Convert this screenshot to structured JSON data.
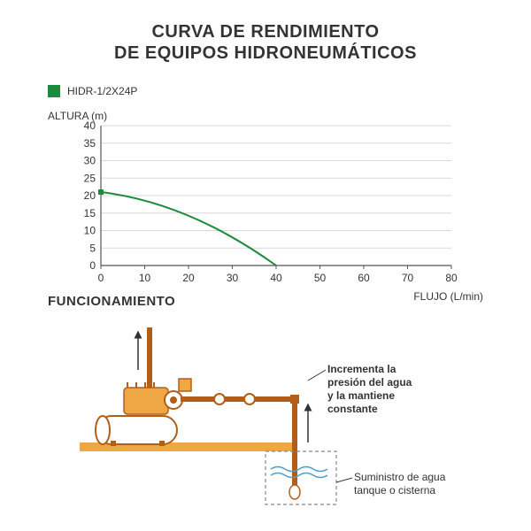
{
  "title_line1": "CURVA DE RENDIMIENTO",
  "title_line2": "DE EQUIPOS HIDRONEUMÁTICOS",
  "title_fontsize": 20,
  "legend": {
    "label": "HIDR-1/2X24P",
    "swatch_color": "#1a8a3c"
  },
  "chart": {
    "type": "line",
    "y_title": "ALTURA (m)",
    "x_title": "FLUJO (L/min)",
    "xlim": [
      0,
      80
    ],
    "ylim": [
      0,
      40
    ],
    "xtick_step": 10,
    "ytick_step": 5,
    "axis_color": "#555555",
    "grid_color": "#d9d9d9",
    "line_color": "#1a8a3c",
    "marker_color": "#1a8a3c",
    "line_width": 2,
    "x_ticks": [
      0,
      10,
      20,
      30,
      40,
      50,
      60,
      70,
      80
    ],
    "y_ticks": [
      0,
      5,
      10,
      15,
      20,
      25,
      30,
      35,
      40
    ],
    "points": [
      {
        "x": 0,
        "y": 21
      },
      {
        "x": 20,
        "y": 18
      },
      {
        "x": 40,
        "y": 0
      }
    ]
  },
  "section_title": "FUNCIONAMIENTO",
  "diagram": {
    "base_color": "#eda843",
    "pipe_color": "#b35e18",
    "pump_body_color": "#eda843",
    "tank_color": "#ffffff",
    "tank_stroke": "#b35e18",
    "arrow_color": "#333333",
    "water_color": "#4aa0c9",
    "label_main_l1": "Incrementa la",
    "label_main_l2": "presión del agua",
    "label_main_l3": "y la mantiene",
    "label_main_l4": "constante",
    "label_supply_l1": "Suministro de agua",
    "label_supply_l2": "tanque o cisterna"
  }
}
